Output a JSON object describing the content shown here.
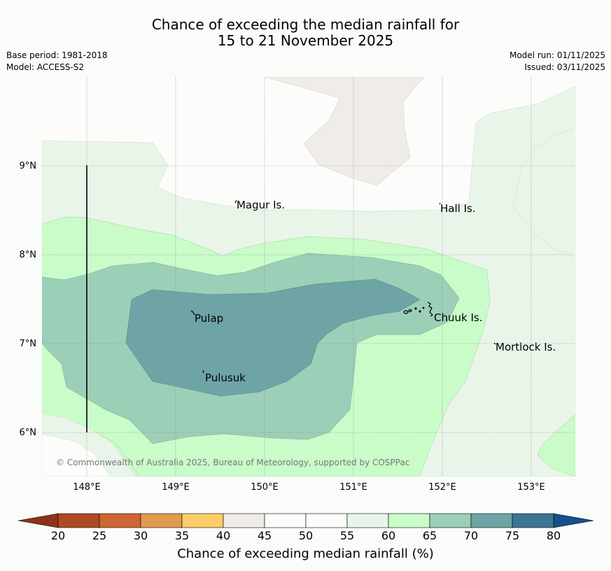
{
  "title": {
    "line1": "Chance of exceeding the median rainfall for",
    "line2": "15 to 21 November 2025"
  },
  "info_left": {
    "base_period": "Base period: 1981-2018",
    "model": "Model: ACCESS-S2"
  },
  "info_right": {
    "model_run": "Model run: 01/11/2025",
    "issued": "Issued: 03/11/2025"
  },
  "map": {
    "lon_ticks": [
      "148°E",
      "149°E",
      "150°E",
      "151°E",
      "152°E",
      "153°E"
    ],
    "lat_ticks": [
      "9°N",
      "8°N",
      "7°N",
      "6°N"
    ],
    "places": [
      {
        "name": "Magur Is."
      },
      {
        "name": "Hall Is."
      },
      {
        "name": "Pulap"
      },
      {
        "name": "Chuuk Is."
      },
      {
        "name": "Mortlock Is."
      },
      {
        "name": "Pulusuk"
      }
    ],
    "copyright": "© Commonwealth of Australia 2025, Bureau of Meteorology, supported by COSPPac"
  },
  "colorbar": {
    "title": "Chance of exceeding median rainfall (%)",
    "ticks": [
      "20",
      "25",
      "30",
      "35",
      "40",
      "45",
      "50",
      "55",
      "60",
      "65",
      "70",
      "75",
      "80"
    ],
    "colors": [
      "#b04a24",
      "#ce6633",
      "#e29a4e",
      "#fdcd69",
      "#f0ece7",
      "#fcfdfb",
      "#fcfdfb",
      "#eaf5ea",
      "#c9fcc9",
      "#9ccfb7",
      "#6ea4a5",
      "#3e7594"
    ],
    "under_color": "#8e3218",
    "over_color": "#16508c"
  }
}
